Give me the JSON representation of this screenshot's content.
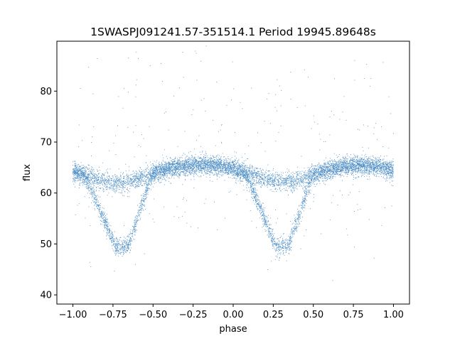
{
  "chart_data": {
    "type": "scatter",
    "title": "1SWASPJ091241.57-351514.1 Period 19945.89648s",
    "xlabel": "phase",
    "ylabel": "flux",
    "xlim": [
      -1.1,
      1.1
    ],
    "ylim": [
      38.2,
      89.8
    ],
    "xticks": [
      -1.0,
      -0.75,
      -0.5,
      -0.25,
      0.0,
      0.25,
      0.5,
      0.75,
      1.0
    ],
    "xtick_labels": [
      "−1.00",
      "−0.75",
      "−0.50",
      "−0.25",
      "0.00",
      "0.25",
      "0.50",
      "0.75",
      "1.00"
    ],
    "yticks": [
      40,
      50,
      60,
      70,
      80
    ],
    "ytick_labels": [
      "40",
      "50",
      "60",
      "70",
      "80"
    ],
    "grid": false,
    "marker_color": "#4c8dc4",
    "series": [
      {
        "description_of_shape": "phase-folded eclipsing binary light curve",
        "upper_branch": {
          "x": [
            -1.0,
            -0.9,
            -0.8,
            -0.7,
            -0.6,
            -0.5,
            -0.4,
            -0.3,
            -0.2,
            -0.1,
            0.0,
            0.1,
            0.2,
            0.3,
            0.4,
            0.5,
            0.6,
            0.7,
            0.8,
            0.9,
            1.0
          ],
          "y": [
            64.2,
            63.2,
            62.3,
            62.1,
            62.6,
            63.8,
            64.8,
            65.3,
            65.6,
            65.4,
            64.7,
            63.8,
            62.8,
            62.1,
            62.4,
            63.6,
            64.6,
            65.3,
            65.5,
            65.2,
            64.5
          ]
        },
        "eclipses": [
          {
            "x_center": -0.69,
            "y_min": 49.5,
            "x_start": -0.93,
            "x_end": -0.5
          },
          {
            "x_center": 0.31,
            "y_min": 49.5,
            "x_start": 0.07,
            "x_end": 0.5
          }
        ]
      }
    ]
  }
}
